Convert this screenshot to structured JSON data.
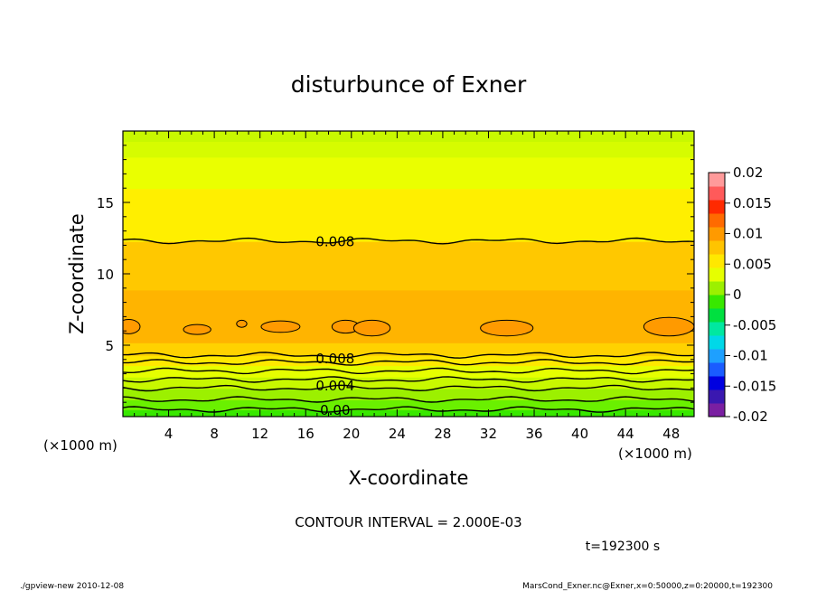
{
  "chart_data": {
    "type": "heatmap",
    "title": "disturbunce of Exner",
    "xlabel": "X-coordinate",
    "ylabel": "Z-coordinate",
    "x_unit": "(×1000 m)",
    "y_unit": "(×1000 m)",
    "xlim": [
      0,
      50
    ],
    "ylim": [
      0,
      20
    ],
    "x_ticks": [
      4,
      8,
      12,
      16,
      20,
      24,
      28,
      32,
      36,
      40,
      44,
      48
    ],
    "y_ticks": [
      5,
      10,
      15
    ],
    "contour_interval_text": "CONTOUR INTERVAL = 2.000E-03",
    "time_text": "t=192300 s",
    "footer_left": "./gpview-new  2010-12-08",
    "footer_right": "MarsCond_Exner.nc@Exner,x=0:50000,z=0:20000,t=192300",
    "contour_labels": [
      {
        "text": "0.008",
        "x": 18.5,
        "z": 12.3
      },
      {
        "text": "0.008",
        "x": 18.5,
        "z": 4.1
      },
      {
        "text": "0.004",
        "x": 18.5,
        "z": 2.2
      },
      {
        "text": "0.00",
        "x": 18.5,
        "z": 0.5
      }
    ],
    "colorbar": {
      "ticks": [
        "0.02",
        "0.015",
        "0.01",
        "0.005",
        "0",
        "-0.005",
        "-0.01",
        "-0.015",
        "-0.02"
      ],
      "range": [
        -0.02,
        0.02
      ],
      "colors": [
        "#7a1fa2",
        "#3a18b0",
        "#0000e0",
        "#1a5cff",
        "#1ea0ff",
        "#00d8e8",
        "#00e8a0",
        "#00e040",
        "#38e800",
        "#9cf000",
        "#e6ff00",
        "#ffe800",
        "#ffc400",
        "#ff9a00",
        "#ff6a00",
        "#ff2a00",
        "#ff5a5a",
        "#ff9a9a"
      ]
    },
    "bands": [
      {
        "z0": 0.0,
        "z1": 0.5,
        "value": -0.001,
        "color": "#38e800"
      },
      {
        "z0": 0.5,
        "z1": 1.2,
        "value": 0.001,
        "color": "#6af000"
      },
      {
        "z0": 1.2,
        "z1": 2.0,
        "value": 0.003,
        "color": "#9cf000"
      },
      {
        "z0": 2.0,
        "z1": 2.8,
        "value": 0.005,
        "color": "#c8f800"
      },
      {
        "z0": 2.8,
        "z1": 3.6,
        "value": 0.0065,
        "color": "#e6ff00"
      },
      {
        "z0": 3.6,
        "z1": 4.3,
        "value": 0.0075,
        "color": "#ffe800"
      },
      {
        "z0": 4.3,
        "z1": 5.2,
        "value": 0.0085,
        "color": "#ffd200"
      },
      {
        "z0": 5.2,
        "z1": 8.9,
        "value": 0.0095,
        "color": "#ffb400"
      },
      {
        "z0": 8.9,
        "z1": 12.3,
        "value": 0.0088,
        "color": "#ffc800"
      },
      {
        "z0": 12.3,
        "z1": 16.0,
        "value": 0.0075,
        "color": "#ffef00"
      },
      {
        "z0": 16.0,
        "z1": 18.2,
        "value": 0.0062,
        "color": "#eaff00"
      },
      {
        "z0": 18.2,
        "z1": 19.3,
        "value": 0.0055,
        "color": "#d6fc00"
      },
      {
        "z0": 19.3,
        "z1": 20.0,
        "value": 0.005,
        "color": "#c8f800"
      }
    ],
    "contour_lines_z": [
      0.5,
      1.2,
      2.0,
      2.6,
      3.2,
      3.8,
      4.3,
      12.3
    ],
    "cells": [
      {
        "x": 0.5,
        "z": 6.3,
        "rx": 1.0,
        "rz": 0.5
      },
      {
        "x": 6.5,
        "z": 6.1,
        "rx": 1.2,
        "rz": 0.35
      },
      {
        "x": 10.4,
        "z": 6.5,
        "rx": 0.45,
        "rz": 0.25
      },
      {
        "x": 13.8,
        "z": 6.3,
        "rx": 1.7,
        "rz": 0.4
      },
      {
        "x": 19.5,
        "z": 6.3,
        "rx": 1.2,
        "rz": 0.45
      },
      {
        "x": 21.8,
        "z": 6.2,
        "rx": 1.6,
        "rz": 0.55
      },
      {
        "x": 33.6,
        "z": 6.2,
        "rx": 2.3,
        "rz": 0.55
      },
      {
        "x": 47.8,
        "z": 6.3,
        "rx": 2.2,
        "rz": 0.65
      }
    ]
  }
}
